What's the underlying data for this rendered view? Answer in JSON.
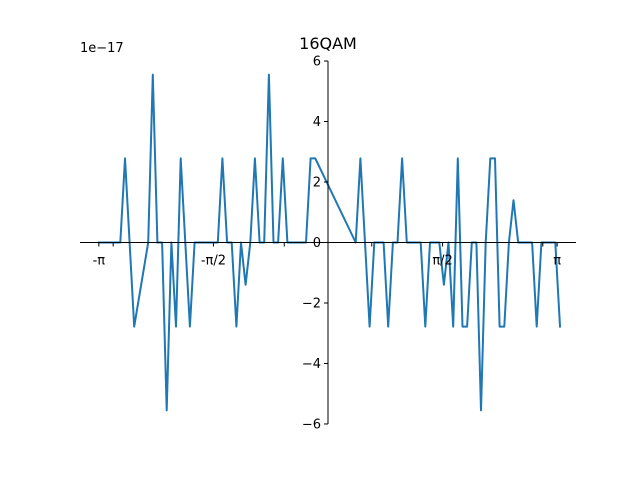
{
  "chart_data": {
    "type": "line",
    "title": "16QAM",
    "xlabel": "",
    "ylabel": "",
    "y_offset_label": "1e−17",
    "xlim": [
      -3.4,
      3.4
    ],
    "ylim": [
      -6.1,
      6.1
    ],
    "x_ticks": [
      {
        "value": -3.1416,
        "label": "-π"
      },
      {
        "value": -1.5708,
        "label": "-π/2"
      },
      {
        "value": 1.5708,
        "label": "π/2"
      },
      {
        "value": 3.1416,
        "label": "π"
      }
    ],
    "x_minor_ticks": [
      -2.9452,
      -0.6,
      0.6,
      2.9452
    ],
    "y_ticks": [
      {
        "value": -6,
        "label": "−6"
      },
      {
        "value": -4,
        "label": "−4"
      },
      {
        "value": -2,
        "label": "−2"
      },
      {
        "value": 0,
        "label": "0"
      },
      {
        "value": 2,
        "label": "2"
      },
      {
        "value": 4,
        "label": "4"
      },
      {
        "value": 6,
        "label": "6"
      }
    ],
    "grid": false,
    "legend": "none",
    "series": [
      {
        "color": "#1f77b4",
        "x": [
          -3.1416,
          -2.8472,
          -2.7836,
          -2.7199,
          -2.6563,
          -2.4655,
          -2.4018,
          -2.3382,
          -2.2745,
          -2.2109,
          -2.1473,
          -2.0836,
          -2.02,
          -1.9564,
          -1.8927,
          -1.8291,
          -1.7655,
          -1.7018,
          -1.6382,
          -1.5745,
          -1.5109,
          -1.4473,
          -1.3836,
          -1.32,
          -1.2564,
          -1.1927,
          -1.1291,
          -1.0655,
          -1.0018,
          -0.9382,
          -0.8745,
          -0.8109,
          -0.7473,
          -0.6836,
          -0.62,
          -0.5564,
          -0.4927,
          -0.4291,
          -0.3655,
          -0.3018,
          -0.2382,
          -0.1745,
          0.38,
          0.4436,
          0.5073,
          0.5709,
          0.6345,
          0.6982,
          0.7618,
          0.8255,
          0.8891,
          0.9527,
          1.0164,
          1.08,
          1.1436,
          1.2073,
          1.2709,
          1.3345,
          1.3982,
          1.4618,
          1.5255,
          1.5891,
          1.6527,
          1.7164,
          1.78,
          1.8436,
          1.9073,
          1.9709,
          2.0345,
          2.0982,
          2.1618,
          2.2255,
          2.2891,
          2.3527,
          2.4164,
          2.48,
          2.5436,
          2.6073,
          2.6709,
          2.7345,
          2.7982,
          2.8618,
          2.9255,
          2.9891,
          3.0527,
          3.1164,
          3.18
        ],
        "y": [
          0,
          0,
          2.78,
          0,
          -2.78,
          0,
          5.55,
          0,
          0,
          -5.55,
          0,
          -2.78,
          2.78,
          0,
          -2.78,
          0,
          0,
          0,
          0,
          0,
          0,
          2.78,
          0,
          0,
          -2.78,
          0,
          -1.4,
          0,
          2.78,
          0,
          0,
          5.55,
          0,
          0,
          2.78,
          0,
          0,
          0,
          0,
          0,
          2.78,
          2.78,
          0,
          2.78,
          0,
          -2.78,
          0,
          0,
          0,
          -2.78,
          0,
          0,
          2.78,
          0,
          0,
          0,
          0,
          -2.78,
          0,
          0,
          0,
          -1.4,
          0,
          -2.78,
          2.78,
          -2.78,
          -2.78,
          0,
          0,
          -5.55,
          0,
          2.78,
          2.78,
          -2.78,
          -2.78,
          0,
          1.4,
          0,
          0,
          0,
          0,
          -2.78,
          0,
          0,
          0,
          0,
          -2.78
        ]
      }
    ]
  }
}
